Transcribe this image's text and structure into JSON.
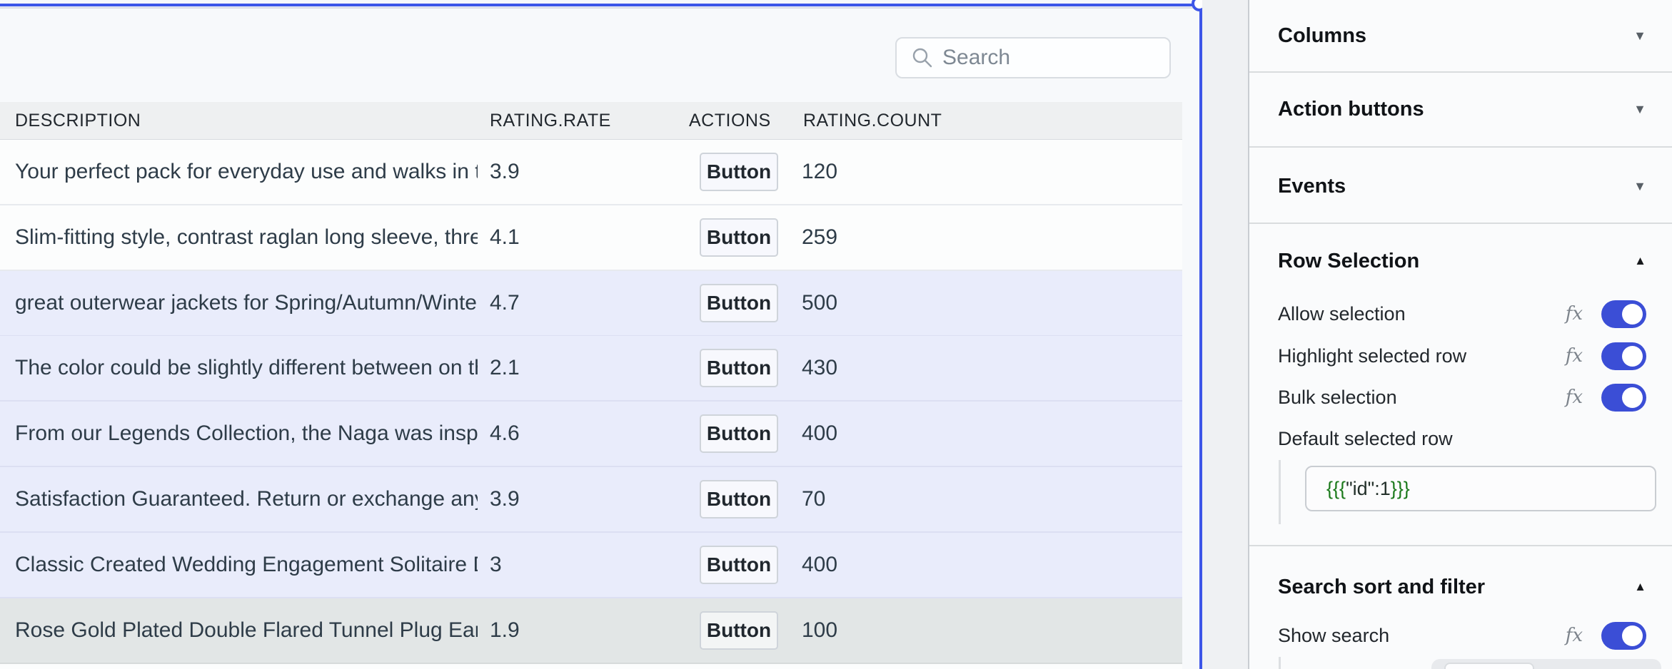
{
  "table": {
    "search_placeholder": "Search",
    "columns": [
      "DESCRIPTION",
      "RATING.RATE",
      "ACTIONS",
      "RATING.COUNT"
    ],
    "action_button_label": "Button",
    "rows": [
      {
        "description": "Your perfect pack for everyday use and walks in the",
        "rate": "3.9",
        "count": "120",
        "state": "default"
      },
      {
        "description": "Slim-fitting style, contrast raglan long sleeve, three-",
        "rate": "4.1",
        "count": "259",
        "state": "default"
      },
      {
        "description": "great outerwear jackets for Spring/Autumn/Winter,",
        "rate": "4.7",
        "count": "500",
        "state": "selected"
      },
      {
        "description": "The color could be slightly different between on the",
        "rate": "2.1",
        "count": "430",
        "state": "selected"
      },
      {
        "description": "From our Legends Collection, the Naga was inspired",
        "rate": "4.6",
        "count": "400",
        "state": "selected"
      },
      {
        "description": "Satisfaction Guaranteed. Return or exchange any or",
        "rate": "3.9",
        "count": "70",
        "state": "selected"
      },
      {
        "description": "Classic Created Wedding Engagement Solitaire Diam",
        "rate": "3",
        "count": "400",
        "state": "selected"
      },
      {
        "description": "Rose Gold Plated Double Flared Tunnel Plug Earring",
        "rate": "1.9",
        "count": "100",
        "state": "active"
      }
    ]
  },
  "inspector": {
    "fx_label": "fx",
    "sections": {
      "columns_title": "Columns",
      "action_buttons_title": "Action buttons",
      "events_title": "Events",
      "row_selection_title": "Row Selection",
      "search_sort_filter_title": "Search sort and filter"
    },
    "row_selection": {
      "allow_selection": "Allow selection",
      "highlight_selected_row": "Highlight selected row",
      "bulk_selection": "Bulk selection",
      "default_selected_row_label": "Default selected row",
      "default_selected_row_value_open": "{{{",
      "default_selected_row_value_inner": "\"id\":1",
      "default_selected_row_value_close": "}}}"
    },
    "search_sort_filter": {
      "show_search": "Show search"
    },
    "carets": {
      "collapsed": "▼",
      "expanded": "▲"
    }
  },
  "colors": {
    "selection_border": "#3d56e8",
    "toggle_on": "#3b4ed6",
    "row_selected_bg": "#e9ecfb",
    "row_active_bg": "#e2e6e6",
    "expression_green": "#1c7a1c"
  }
}
